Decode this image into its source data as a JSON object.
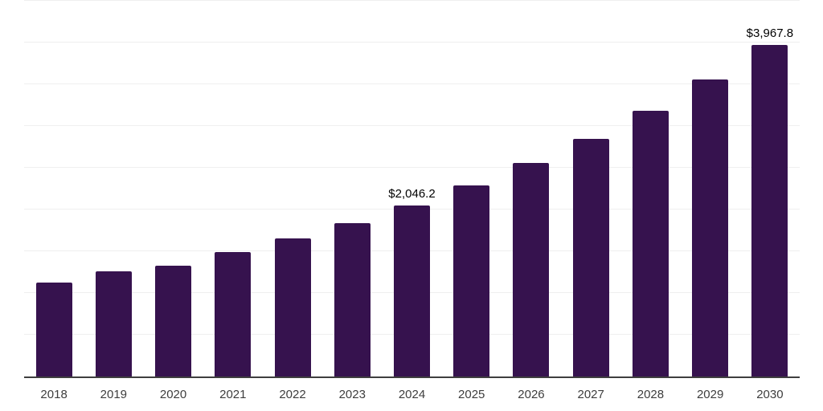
{
  "chart_data": {
    "type": "bar",
    "title": "",
    "xlabel": "",
    "ylabel": "",
    "categories": [
      "2018",
      "2019",
      "2020",
      "2021",
      "2022",
      "2023",
      "2024",
      "2025",
      "2026",
      "2027",
      "2028",
      "2029",
      "2030"
    ],
    "values": [
      1125,
      1255,
      1325,
      1490,
      1650,
      1835,
      2046.2,
      2285,
      2552,
      2845,
      3180,
      3550,
      3967.8
    ],
    "data_labels": [
      "",
      "",
      "",
      "",
      "",
      "",
      "$2,046.2",
      "",
      "",
      "",
      "",
      "",
      "$3,967.8"
    ],
    "ylim": [
      0,
      4500
    ],
    "gridline_step": 500,
    "grid": "horizontal only, no y-axis tick labels",
    "legend": "none",
    "colors": {
      "bar": "#36124E",
      "gridline": "#efefef",
      "axis": "#3f3f3f",
      "tick_label": "#3d3d3d",
      "data_label": "#000000",
      "background": "#ffffff"
    }
  }
}
